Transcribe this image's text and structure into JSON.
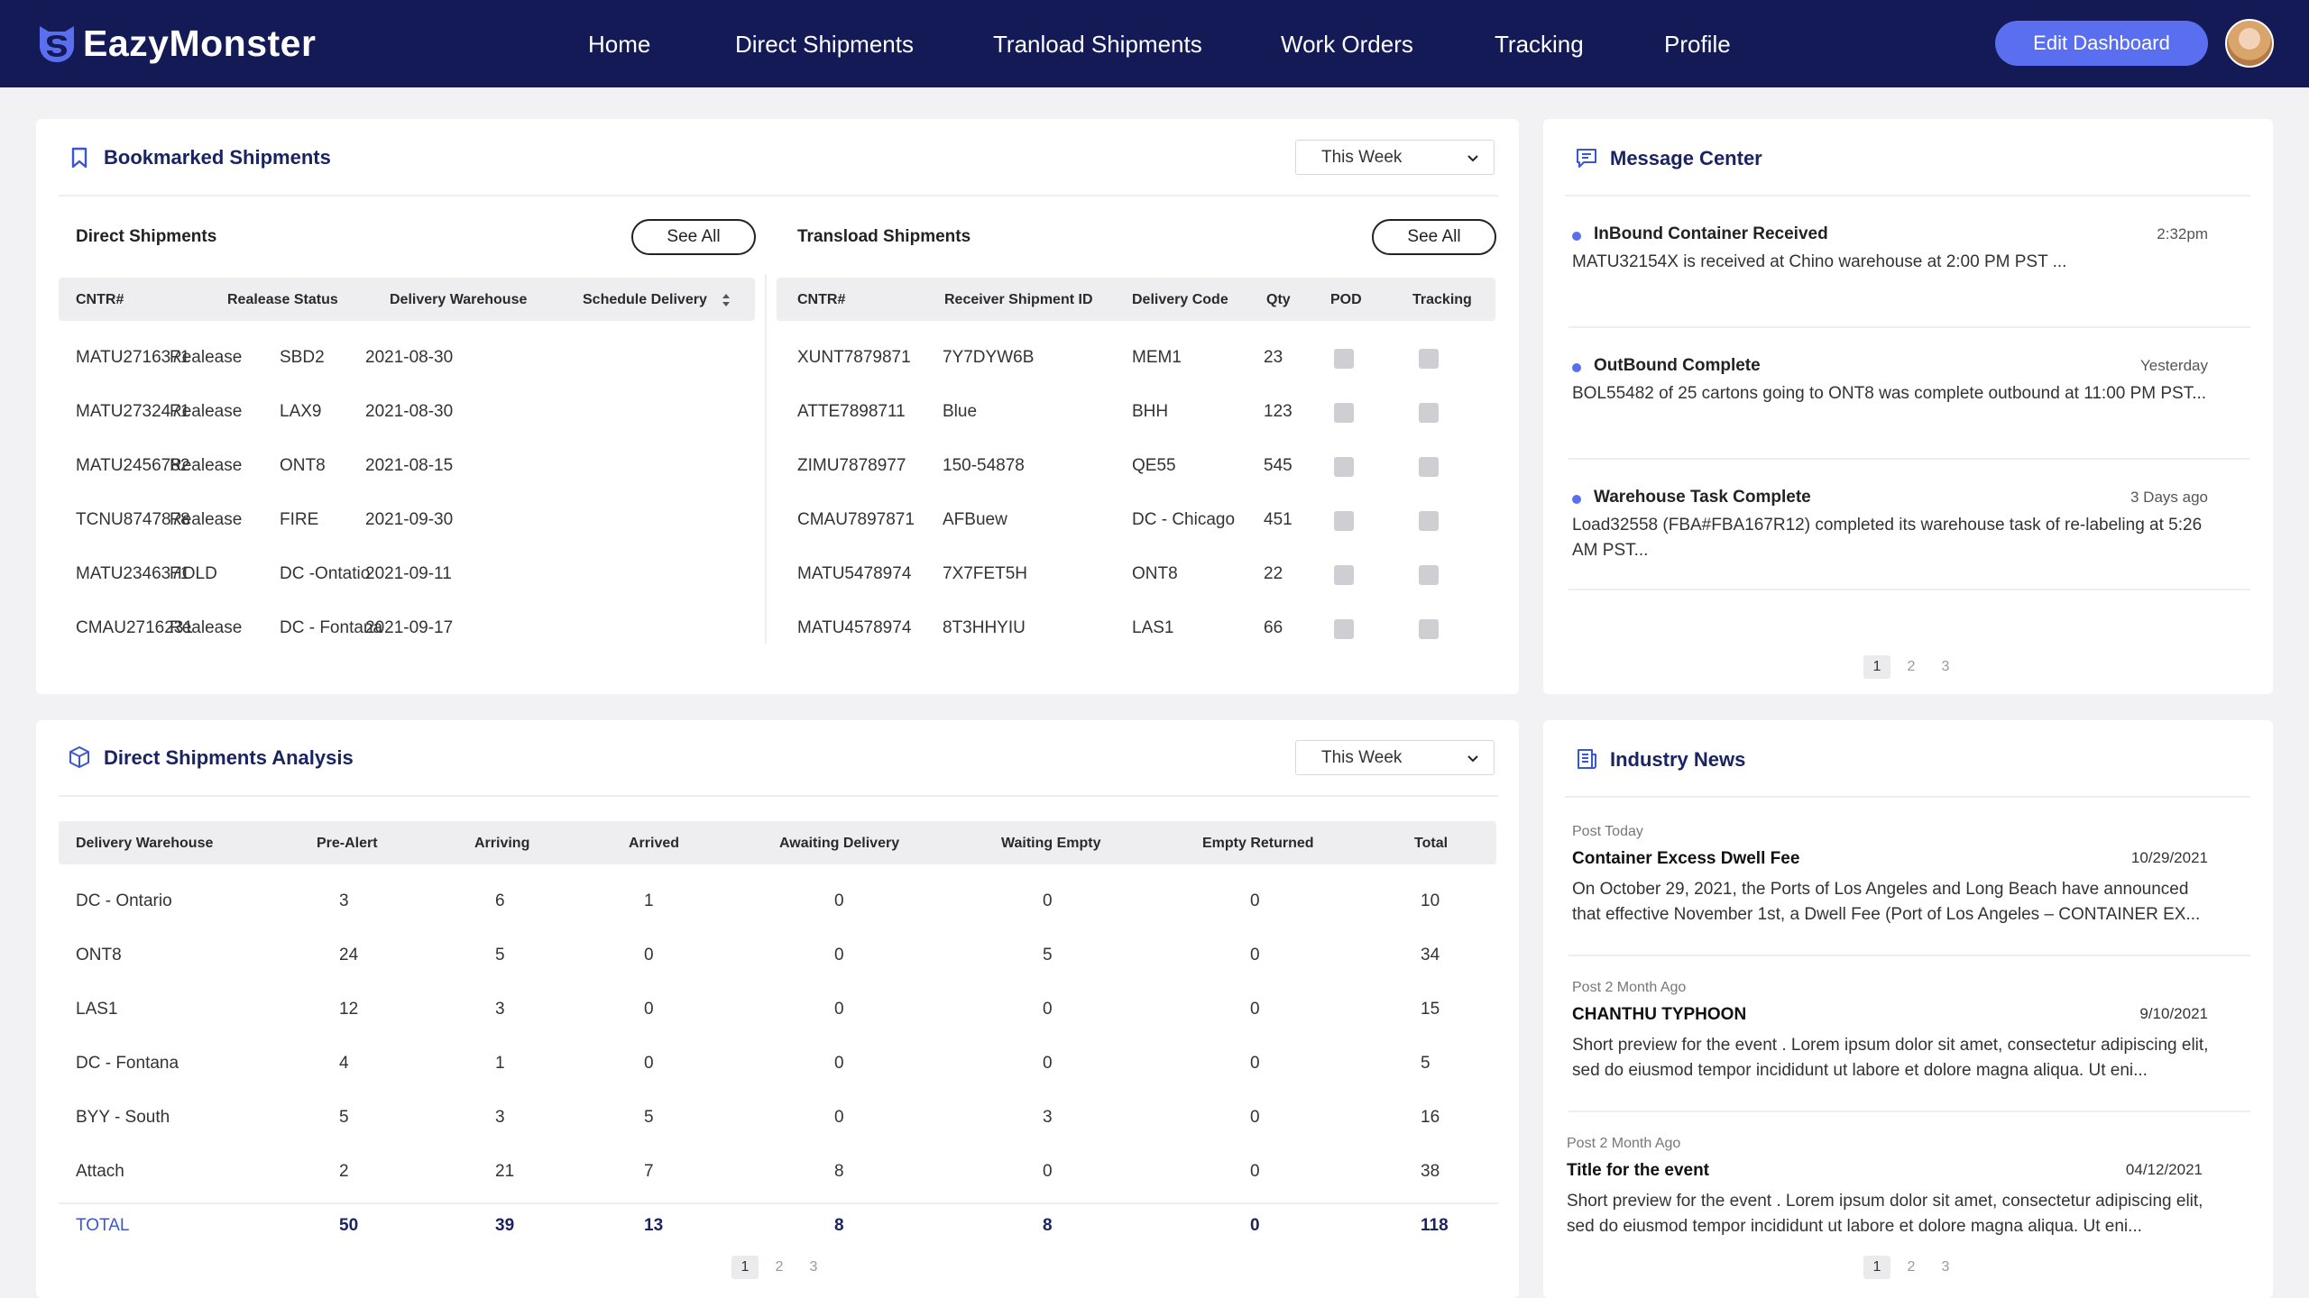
{
  "app": {
    "logo_text": "EazyMonster"
  },
  "nav": {
    "items": [
      "Home",
      "Direct Shipments",
      "Tranload Shipments",
      "Work Orders",
      "Tracking",
      "Profile"
    ],
    "edit_button": "Edit Dashboard"
  },
  "bookmarked": {
    "title": "Bookmarked Shipments",
    "period": "This Week",
    "direct": {
      "title": "Direct Shipments",
      "see_all": "See All",
      "headers": [
        "CNTR#",
        "Realease Status",
        "Delivery Warehouse",
        "Schedule Delivery"
      ],
      "rows": [
        [
          "MATU2716371",
          "Realease",
          "SBD2",
          "2021-08-30"
        ],
        [
          "MATU2732471",
          "Realease",
          "LAX9",
          "2021-08-30"
        ],
        [
          "MATU2456782",
          "Realease",
          "ONT8",
          "2021-08-15"
        ],
        [
          "TCNU8747878",
          "Realease",
          "FIRE",
          "2021-09-30"
        ],
        [
          "MATU2346371",
          "HOLD",
          "DC -Ontatio",
          "2021-09-11"
        ],
        [
          "CMAU2716231",
          "Realease",
          "DC - Fontana",
          "2021-09-17"
        ]
      ]
    },
    "transload": {
      "title": "Transload Shipments",
      "see_all": "See All",
      "headers": [
        "CNTR#",
        "Receiver Shipment ID",
        "Delivery Code",
        "Qty",
        "POD",
        "Tracking"
      ],
      "rows": [
        [
          "XUNT7879871",
          "7Y7DYW6B",
          "MEM1",
          "23"
        ],
        [
          "ATTE7898711",
          "Blue",
          "BHH",
          "123"
        ],
        [
          "ZIMU7878977",
          "150-54878",
          "QE55",
          "545"
        ],
        [
          "CMAU7897871",
          "AFBuew",
          "DC - Chicago",
          "451"
        ],
        [
          "MATU5478974",
          "7X7FET5H",
          "ONT8",
          "22"
        ],
        [
          "MATU4578974",
          "8T3HHYIU",
          "LAS1",
          "66"
        ]
      ]
    }
  },
  "analysis": {
    "title": "Direct Shipments  Analysis",
    "period": "This Week",
    "headers": [
      "Delivery Warehouse",
      "Pre-Alert",
      "Arriving",
      "Arrived",
      "Awaiting Delivery",
      "Waiting Empty",
      "Empty Returned",
      "Total"
    ],
    "rows": [
      [
        "DC - Ontario",
        "3",
        "6",
        "1",
        "0",
        "0",
        "0",
        "10"
      ],
      [
        "ONT8",
        "24",
        "5",
        "0",
        "0",
        "5",
        "0",
        "34"
      ],
      [
        "LAS1",
        "12",
        "3",
        "0",
        "0",
        "0",
        "0",
        "15"
      ],
      [
        "DC - Fontana",
        "4",
        "1",
        "0",
        "0",
        "0",
        "0",
        "5"
      ],
      [
        "BYY - South",
        "5",
        "3",
        "5",
        "0",
        "3",
        "0",
        "16"
      ],
      [
        "Attach",
        "2",
        "21",
        "7",
        "8",
        "0",
        "0",
        "38"
      ]
    ],
    "total": [
      "TOTAL",
      "50",
      "39",
      "13",
      "8",
      "8",
      "0",
      "118"
    ],
    "pages": [
      "1",
      "2",
      "3"
    ]
  },
  "messages": {
    "title": "Message Center",
    "items": [
      {
        "title": "InBound Container Received",
        "time": "2:32pm",
        "body": "MATU32154X is received at Chino warehouse at 2:00 PM PST ..."
      },
      {
        "title": "OutBound Complete",
        "time": "Yesterday",
        "body": "BOL55482 of 25 cartons going to ONT8 was complete outbound at 11:00 PM PST..."
      },
      {
        "title": "Warehouse Task Complete",
        "time": "3 Days ago",
        "body": "Load32558 (FBA#FBA167R12) completed its warehouse task of re-labeling at 5:26 AM PST..."
      }
    ],
    "pages": [
      "1",
      "2",
      "3"
    ]
  },
  "news": {
    "title": "Industry News",
    "items": [
      {
        "post": "Post Today",
        "title": "Container Excess Dwell Fee",
        "date": "10/29/2021",
        "body": "On October 29, 2021, the Ports of Los Angeles and Long Beach have announced that effective November 1st, a Dwell Fee (Port of Los Angeles – CONTAINER EX..."
      },
      {
        "post": "Post 2 Month Ago",
        "title": "CHANTHU TYPHOON",
        "date": "9/10/2021",
        "body": "Short preview for the event . Lorem ipsum dolor sit amet, consectetur adipiscing elit, sed do eiusmod tempor incididunt ut labore et dolore magna aliqua. Ut eni..."
      },
      {
        "post": "Post 2 Month Ago",
        "title": "Title for the event",
        "date": "04/12/2021",
        "body": "Short preview for the event . Lorem ipsum dolor sit amet, consectetur adipiscing elit, sed do eiusmod tempor incididunt ut labore et dolore magna aliqua. Ut eni..."
      }
    ],
    "pages": [
      "1",
      "2",
      "3"
    ]
  },
  "colors": {
    "nav_bg": "#131a55",
    "accent": "#5a6ff0",
    "title": "#1b2462"
  }
}
